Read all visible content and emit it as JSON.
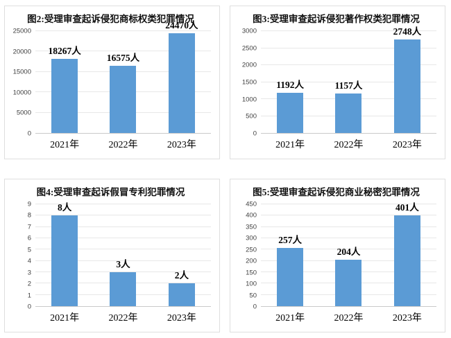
{
  "theme": {
    "bar_color": "#5B9BD5",
    "gridline_color": "#E7E7E7",
    "axis_line_color": "#C9C9C9",
    "panel_border_color": "#DEDEDE",
    "label_color": "#000000",
    "tick_color": "#404040"
  },
  "chart_data": [
    {
      "id": "figure-2-trademark-crimes",
      "type": "bar",
      "title": "图2:受理审查起诉侵犯商标权类犯罪情况",
      "categories": [
        "2021年",
        "2022年",
        "2023年"
      ],
      "values": [
        18267,
        16575,
        24470
      ],
      "data_labels": [
        "18267人",
        "16575人",
        "24470人"
      ],
      "ylim": [
        0,
        25000
      ],
      "ytick_step": 5000,
      "grid": true,
      "legend": "none"
    },
    {
      "id": "figure-3-copyright-crimes",
      "type": "bar",
      "title": "图3:受理审查起诉侵犯著作权类犯罪情况",
      "categories": [
        "2021年",
        "2022年",
        "2023年"
      ],
      "values": [
        1192,
        1157,
        2748
      ],
      "data_labels": [
        "1192人",
        "1157人",
        "2748人"
      ],
      "ylim": [
        0,
        3000
      ],
      "ytick_step": 500,
      "grid": true,
      "legend": "none"
    },
    {
      "id": "figure-4-counterfeit-patent-crimes",
      "type": "bar",
      "title": "图4:受理审查起诉假冒专利犯罪情况",
      "categories": [
        "2021年",
        "2022年",
        "2023年"
      ],
      "values": [
        8,
        3,
        2
      ],
      "data_labels": [
        "8人",
        "3人",
        "2人"
      ],
      "ylim": [
        0,
        9
      ],
      "ytick_step": 1,
      "grid": true,
      "legend": "none"
    },
    {
      "id": "figure-5-trade-secret-crimes",
      "type": "bar",
      "title": "图5:受理审查起诉侵犯商业秘密犯罪情况",
      "categories": [
        "2021年",
        "2022年",
        "2023年"
      ],
      "values": [
        257,
        204,
        401
      ],
      "data_labels": [
        "257人",
        "204人",
        "401人"
      ],
      "ylim": [
        0,
        450
      ],
      "ytick_step": 50,
      "grid": true,
      "legend": "none"
    }
  ]
}
